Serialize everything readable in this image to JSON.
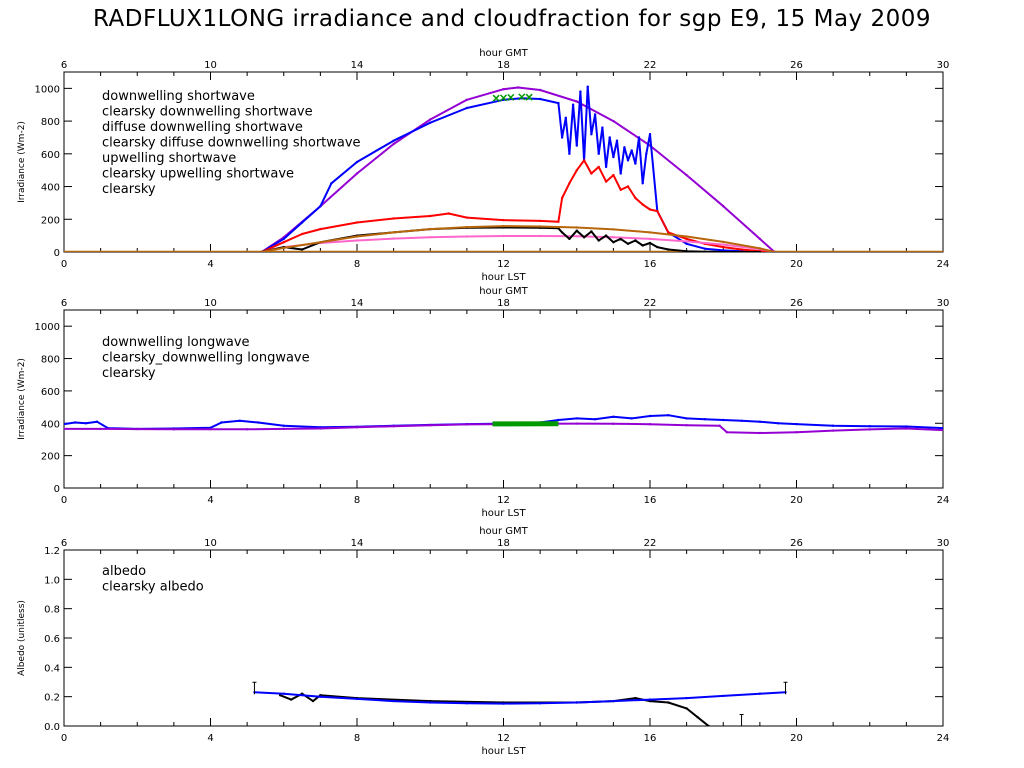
{
  "title": "RADFLUX1LONG irradiance and cloudfraction for sgp E9, 15 May 2009",
  "colors": {
    "blue": "#0000ff",
    "purple": "#9400d3",
    "red": "#ff0000",
    "pink": "#ff66cc",
    "black": "#000000",
    "brown": "#b8660b",
    "green": "#009900",
    "axis": "#000000"
  },
  "chart_data": [
    {
      "type": "line",
      "name": "shortwave",
      "xlabel": "hour LST",
      "x2label": "hour GMT",
      "ylabel": "Irradiance (Wm-2)",
      "xlim": [
        0,
        24
      ],
      "x2lim": [
        6,
        30
      ],
      "ylim": [
        0,
        1100
      ],
      "xticks": [
        0,
        4,
        8,
        12,
        16,
        20,
        24
      ],
      "x2ticks": [
        6,
        10,
        14,
        18,
        22,
        26,
        30
      ],
      "yticks": [
        0,
        200,
        400,
        600,
        800,
        1000
      ],
      "legend": [
        "downwelling shortwave",
        "clearsky downwelling shortwave",
        "diffuse downwelling shortwave",
        "clearsky diffuse downwelling shortwave",
        "upwelling shortwave",
        "clearsky upwelling shortwave",
        "clearsky"
      ],
      "legend_colors": [
        "blue",
        "purple",
        "red",
        "pink",
        "black",
        "brown",
        "green"
      ],
      "series": [
        {
          "name": "clearsky downwelling shortwave",
          "color": "purple",
          "x": [
            5.4,
            6,
            7,
            8,
            9,
            10,
            11,
            12,
            12.4,
            13,
            14,
            15,
            16,
            17,
            18,
            19,
            19.4
          ],
          "y": [
            0,
            90,
            280,
            480,
            660,
            810,
            930,
            995,
            1005,
            990,
            920,
            800,
            650,
            470,
            280,
            80,
            0
          ]
        },
        {
          "name": "downwelling shortwave",
          "color": "blue",
          "x": [
            5.4,
            6,
            6.5,
            7,
            7.3,
            8,
            9,
            10,
            11,
            12,
            12.5,
            13,
            13.5,
            13.6,
            13.7,
            13.8,
            13.9,
            14.0,
            14.1,
            14.2,
            14.3,
            14.4,
            14.5,
            14.6,
            14.7,
            14.8,
            14.9,
            15.0,
            15.1,
            15.2,
            15.3,
            15.4,
            15.5,
            15.6,
            15.7,
            15.8,
            15.9,
            16.0,
            16.2,
            16.5,
            17,
            17.5,
            18,
            18.5,
            19,
            19.4
          ],
          "y": [
            0,
            80,
            180,
            280,
            420,
            550,
            680,
            790,
            880,
            930,
            940,
            935,
            910,
            700,
            820,
            600,
            900,
            650,
            980,
            560,
            1010,
            720,
            840,
            600,
            760,
            520,
            700,
            580,
            680,
            480,
            640,
            560,
            620,
            540,
            700,
            420,
            600,
            720,
            250,
            120,
            50,
            20,
            10,
            5,
            2,
            0
          ]
        },
        {
          "name": "diffuse downwelling shortwave",
          "color": "red",
          "x": [
            5.4,
            6,
            6.5,
            7,
            8,
            9,
            10,
            10.5,
            11,
            12,
            13,
            13.5,
            13.6,
            13.8,
            14.0,
            14.2,
            14.4,
            14.6,
            14.8,
            15.0,
            15.2,
            15.4,
            15.6,
            15.8,
            16.0,
            16.2,
            16.5,
            17,
            17.5,
            18,
            18.5,
            19,
            19.4
          ],
          "y": [
            0,
            60,
            110,
            140,
            180,
            205,
            220,
            235,
            210,
            195,
            190,
            185,
            330,
            420,
            500,
            560,
            480,
            520,
            430,
            470,
            380,
            400,
            330,
            290,
            260,
            250,
            120,
            80,
            50,
            30,
            15,
            5,
            0
          ]
        },
        {
          "name": "clearsky diffuse downwelling shortwave",
          "color": "pink",
          "x": [
            5.4,
            6,
            7,
            8,
            9,
            10,
            11,
            12,
            13,
            14,
            15,
            16,
            17,
            18,
            19,
            19.4
          ],
          "y": [
            0,
            30,
            55,
            70,
            82,
            90,
            95,
            98,
            98,
            96,
            90,
            80,
            65,
            45,
            18,
            0
          ]
        },
        {
          "name": "upwelling shortwave",
          "color": "black",
          "x": [
            5.4,
            6,
            6.5,
            7,
            8,
            9,
            10,
            11,
            12,
            13,
            13.5,
            13.6,
            13.8,
            14.0,
            14.2,
            14.4,
            14.6,
            14.8,
            15.0,
            15.2,
            15.4,
            15.6,
            15.8,
            16.0,
            16.2,
            16.5,
            17,
            17.5,
            18,
            18.5,
            19
          ],
          "y": [
            0,
            30,
            15,
            60,
            100,
            120,
            140,
            148,
            150,
            148,
            145,
            120,
            80,
            130,
            90,
            125,
            70,
            100,
            60,
            80,
            50,
            70,
            40,
            55,
            30,
            15,
            5,
            2,
            0,
            0,
            0
          ]
        },
        {
          "name": "clearsky upwelling shortwave",
          "color": "brown",
          "x": [
            5.4,
            6,
            7,
            8,
            9,
            10,
            11,
            12,
            13,
            14,
            15,
            16,
            17,
            18,
            19,
            19.4
          ],
          "y": [
            0,
            25,
            60,
            95,
            120,
            140,
            152,
            158,
            156,
            150,
            138,
            120,
            95,
            62,
            22,
            0
          ]
        }
      ],
      "clearsky_points": {
        "color": "green",
        "x": [
          11.8,
          12.0,
          12.2,
          12.5,
          12.7
        ],
        "y": [
          940,
          942,
          945,
          948,
          946
        ]
      }
    },
    {
      "type": "line",
      "name": "longwave",
      "xlabel": "hour LST",
      "x2label": "hour GMT",
      "ylabel": "Irradiance (Wm-2)",
      "xlim": [
        0,
        24
      ],
      "x2lim": [
        6,
        30
      ],
      "ylim": [
        0,
        1100
      ],
      "xticks": [
        0,
        4,
        8,
        12,
        16,
        20,
        24
      ],
      "x2ticks": [
        6,
        10,
        14,
        18,
        22,
        26,
        30
      ],
      "yticks": [
        0,
        200,
        400,
        600,
        800,
        1000
      ],
      "legend": [
        "downwelling longwave",
        "clearsky_downwelling longwave",
        "clearsky"
      ],
      "legend_colors": [
        "blue",
        "purple",
        "green"
      ],
      "series": [
        {
          "name": "downwelling longwave",
          "color": "blue",
          "x": [
            0,
            0.3,
            0.6,
            0.9,
            1.2,
            2,
            3,
            4,
            4.3,
            4.8,
            5.3,
            6,
            7,
            8,
            9,
            10,
            11,
            12,
            13,
            13.5,
            14,
            14.5,
            15,
            15.5,
            16,
            16.5,
            17,
            17.5,
            18,
            18.5,
            19,
            19.5,
            20,
            21,
            22,
            23,
            24
          ],
          "y": [
            395,
            405,
            400,
            410,
            370,
            365,
            368,
            372,
            405,
            415,
            405,
            385,
            375,
            378,
            385,
            390,
            395,
            398,
            405,
            420,
            430,
            425,
            440,
            430,
            445,
            450,
            430,
            425,
            420,
            415,
            410,
            400,
            395,
            385,
            382,
            380,
            370
          ]
        },
        {
          "name": "clearsky_downwelling longwave",
          "color": "purple",
          "x": [
            0,
            1,
            2,
            3,
            4,
            5,
            6,
            7,
            8,
            9,
            10,
            11,
            12,
            13,
            14,
            15,
            16,
            17,
            17.9,
            18.1,
            19,
            20,
            21,
            22,
            23,
            24
          ],
          "y": [
            365,
            365,
            364,
            363,
            363,
            363,
            365,
            368,
            375,
            382,
            388,
            393,
            395,
            397,
            398,
            397,
            394,
            388,
            385,
            345,
            340,
            345,
            355,
            362,
            368,
            358
          ]
        }
      ],
      "clearsky_segment": {
        "color": "green",
        "x": [
          11.7,
          13.5
        ],
        "y": [
          396,
          397
        ]
      }
    },
    {
      "type": "line",
      "name": "albedo",
      "xlabel": "hour LST",
      "x2label": "hour GMT",
      "ylabel": "Albedo (unitless)",
      "xlim": [
        0,
        24
      ],
      "x2lim": [
        6,
        30
      ],
      "ylim": [
        0,
        1.2
      ],
      "xticks": [
        0,
        4,
        8,
        12,
        16,
        20,
        24
      ],
      "x2ticks": [
        6,
        10,
        14,
        18,
        22,
        26,
        30
      ],
      "yticks": [
        0.0,
        0.2,
        0.4,
        0.6,
        0.8,
        1.0,
        1.2
      ],
      "legend": [
        "albedo",
        "clearsky albedo"
      ],
      "legend_colors": [
        "black",
        "blue"
      ],
      "series": [
        {
          "name": "albedo",
          "color": "black",
          "x": [
            5.9,
            6.2,
            6.5,
            6.8,
            7.0,
            8,
            10,
            12,
            14,
            15,
            15.6,
            16,
            16.5,
            17,
            17.3,
            17.6
          ],
          "y": [
            0.21,
            0.18,
            0.22,
            0.17,
            0.21,
            0.19,
            0.17,
            0.16,
            0.16,
            0.17,
            0.19,
            0.17,
            0.16,
            0.12,
            0.06,
            0.0
          ]
        },
        {
          "name": "clearsky albedo",
          "color": "blue",
          "x": [
            5.2,
            6,
            7,
            8,
            9,
            10,
            11,
            12,
            13,
            14,
            15,
            16,
            17,
            18,
            19,
            19.7
          ],
          "y": [
            0.23,
            0.22,
            0.2,
            0.185,
            0.17,
            0.16,
            0.155,
            0.153,
            0.155,
            0.16,
            0.17,
            0.18,
            0.19,
            0.205,
            0.22,
            0.23
          ]
        }
      ],
      "markers": [
        {
          "x": 5.2,
          "y": 0.23
        },
        {
          "x": 19.7,
          "y": 0.23
        },
        {
          "x": 18.5,
          "y": 0.01
        }
      ]
    }
  ]
}
